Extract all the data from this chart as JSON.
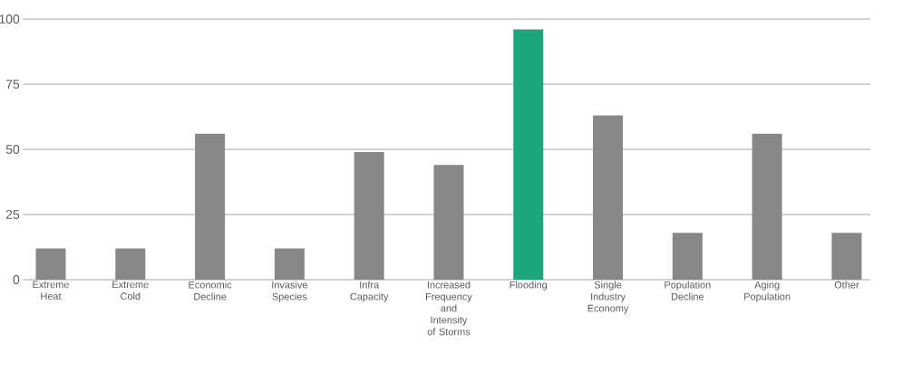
{
  "chart_data": {
    "type": "bar",
    "categories": [
      "Extreme Heat",
      "Extreme Cold",
      "Economic Decline",
      "Invasive Species",
      "Infra Capacity",
      "Increased Frequency and Intensity of Storms",
      "Flooding",
      "Single Industry Economy",
      "Population Decline",
      "Aging Population",
      "Other"
    ],
    "values": [
      12,
      12,
      56,
      12,
      49,
      44,
      96,
      63,
      18,
      56,
      18
    ],
    "colors": [
      "#878787",
      "#878787",
      "#878787",
      "#878787",
      "#878787",
      "#878787",
      "#1ba67d",
      "#878787",
      "#878787",
      "#878787",
      "#878787"
    ],
    "ylim": [
      0,
      100
    ],
    "yticks": [
      0,
      25,
      50,
      75,
      100
    ],
    "grid": "y"
  }
}
